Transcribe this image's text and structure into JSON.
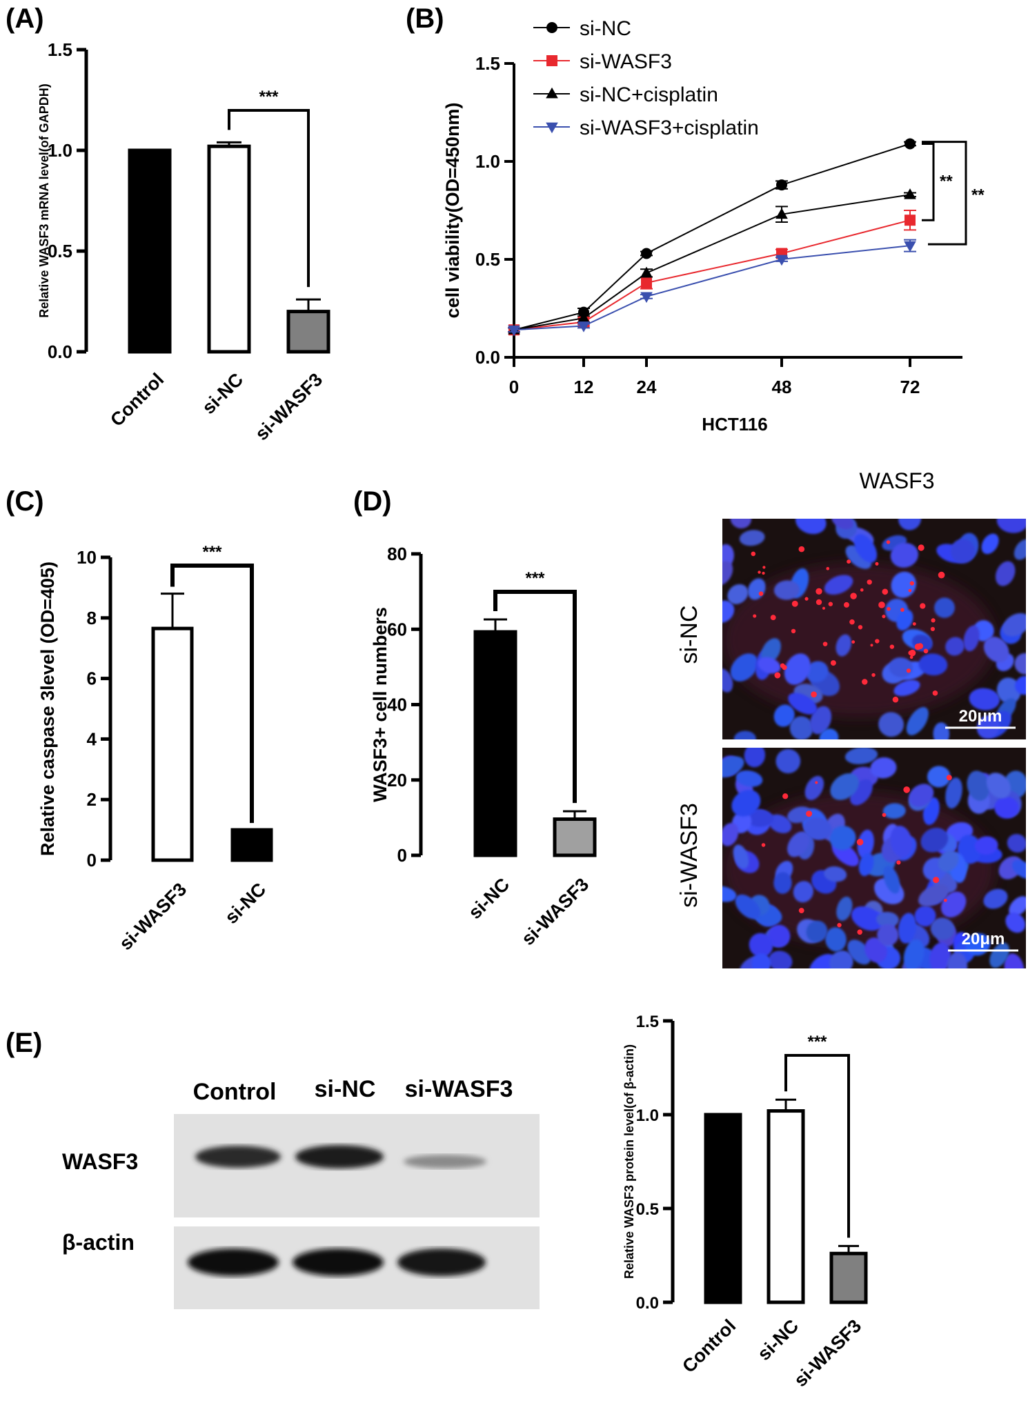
{
  "panel_labels": {
    "A": "(A)",
    "B": "(B)",
    "C": "(C)",
    "D": "(D)",
    "E": "(E)"
  },
  "chart_data": [
    {
      "id": "A",
      "type": "bar",
      "categories": [
        "Control",
        "si-NC",
        "si-WASF3"
      ],
      "values": [
        1.0,
        1.02,
        0.2
      ],
      "errors": [
        0,
        0.02,
        0.06
      ],
      "fills": [
        "#000000",
        "#ffffff",
        "#808080"
      ],
      "ylabel": "Relative WASF3 mRNA level(of GAPDH)",
      "ylim": [
        0,
        1.5
      ],
      "yticks": [
        "0.0",
        "0.5",
        "1.0",
        "1.5"
      ],
      "significance": {
        "between": [
          1,
          2
        ],
        "label": "***"
      }
    },
    {
      "id": "B",
      "type": "line",
      "x": [
        0,
        12,
        24,
        48,
        72
      ],
      "xticks": [
        "0",
        "12",
        "24",
        "48",
        "72"
      ],
      "xlabel": "HCT116",
      "ylabel": "cell viability(OD=450nm)",
      "ylim": [
        0,
        1.5
      ],
      "yticks": [
        "0.0",
        "0.5",
        "1.0",
        "1.5"
      ],
      "series": [
        {
          "name": "si-NC",
          "values": [
            0.14,
            0.23,
            0.53,
            0.88,
            1.09
          ],
          "errors": [
            0.01,
            0.02,
            0.01,
            0.02,
            0.01
          ],
          "color": "#000000",
          "marker": "circle"
        },
        {
          "name": "si-WASF3",
          "values": [
            0.14,
            0.18,
            0.38,
            0.53,
            0.7
          ],
          "errors": [
            0.01,
            0.02,
            0.03,
            0.02,
            0.05
          ],
          "color": "#e8282e",
          "marker": "square"
        },
        {
          "name": "si-NC+cisplatin",
          "values": [
            0.14,
            0.2,
            0.43,
            0.73,
            0.83
          ],
          "errors": [
            0.01,
            0.02,
            0.02,
            0.04,
            0.01
          ],
          "color": "#000000",
          "marker": "triangle-up"
        },
        {
          "name": "si-WASF3+cisplatin",
          "values": [
            0.14,
            0.16,
            0.31,
            0.5,
            0.57
          ],
          "errors": [
            0.01,
            0.01,
            0.01,
            0.01,
            0.03
          ],
          "color": "#3a4fae",
          "marker": "triangle-down"
        }
      ],
      "significance": [
        {
          "label": "**"
        },
        {
          "label": "**"
        }
      ]
    },
    {
      "id": "C",
      "type": "bar",
      "categories": [
        "si-WASF3",
        "si-NC"
      ],
      "values": [
        7.65,
        1.0
      ],
      "errors": [
        1.15,
        0
      ],
      "fills": [
        "#ffffff",
        "#000000"
      ],
      "ylabel": "Relative caspase 3level (OD=405)",
      "ylim": [
        0,
        10
      ],
      "yticks": [
        "0",
        "2",
        "4",
        "6",
        "8",
        "10"
      ],
      "significance": {
        "between": [
          0,
          1
        ],
        "label": "***"
      }
    },
    {
      "id": "D",
      "type": "bar",
      "categories": [
        "si-NC",
        "si-WASF3"
      ],
      "values": [
        59.3,
        9.6
      ],
      "errors": [
        3.3,
        2.1
      ],
      "fills": [
        "#000000",
        "#a0a0a0"
      ],
      "ylabel": "WASF3+ cell numbers",
      "ylim": [
        0,
        80
      ],
      "yticks": [
        "0",
        "20",
        "40",
        "60",
        "80"
      ],
      "significance": {
        "between": [
          0,
          1
        ],
        "label": "***"
      }
    },
    {
      "id": "E",
      "type": "bar",
      "categories": [
        "Control",
        "si-NC",
        "si-WASF3"
      ],
      "values": [
        1.0,
        1.02,
        0.26
      ],
      "errors": [
        0,
        0.06,
        0.04
      ],
      "fills": [
        "#000000",
        "#ffffff",
        "#808080"
      ],
      "ylabel": "Relative WASF3 protein level(of β-actin)",
      "ylim": [
        0,
        1.5
      ],
      "yticks": [
        "0.0",
        "0.5",
        "1.0",
        "1.5"
      ],
      "significance": {
        "between": [
          1,
          2
        ],
        "label": "***"
      }
    }
  ],
  "microscopy": {
    "title": "WASF3",
    "rows": [
      "si-NC",
      "si-WASF3"
    ],
    "scale_bar": "20μm"
  },
  "western_blot": {
    "lanes": [
      "Control",
      "si-NC",
      "si-WASF3"
    ],
    "rows": [
      "WASF3",
      "β-actin"
    ]
  }
}
